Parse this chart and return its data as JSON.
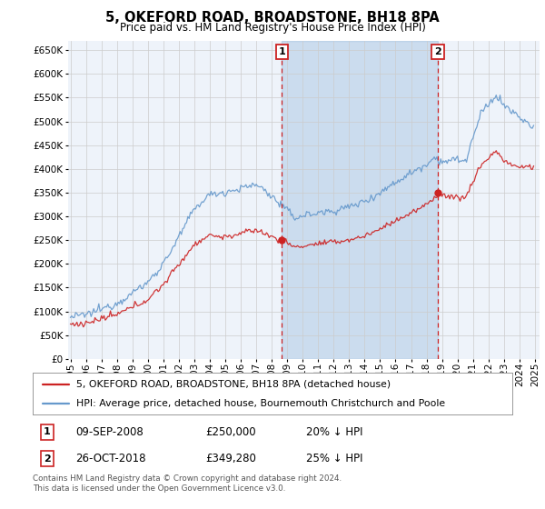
{
  "title": "5, OKEFORD ROAD, BROADSTONE, BH18 8PA",
  "subtitle": "Price paid vs. HM Land Registry's House Price Index (HPI)",
  "legend_line1": "5, OKEFORD ROAD, BROADSTONE, BH18 8PA (detached house)",
  "legend_line2": "HPI: Average price, detached house, Bournemouth Christchurch and Poole",
  "footnote": "Contains HM Land Registry data © Crown copyright and database right 2024.\nThis data is licensed under the Open Government Licence v3.0.",
  "marker1_date": "09-SEP-2008",
  "marker1_price": "£250,000",
  "marker1_hpi": "20% ↓ HPI",
  "marker2_date": "26-OCT-2018",
  "marker2_price": "£349,280",
  "marker2_hpi": "25% ↓ HPI",
  "hpi_color": "#6699cc",
  "price_color": "#cc2222",
  "marker_color": "#cc2222",
  "shade_color": "#ddeeff",
  "background_color": "#ffffff",
  "plot_bg_color": "#eef3fa",
  "grid_color": "#cccccc",
  "ylim_min": 0,
  "ylim_max": 670000,
  "ytick_step": 50000,
  "x_start_year": 1995,
  "x_end_year": 2025
}
